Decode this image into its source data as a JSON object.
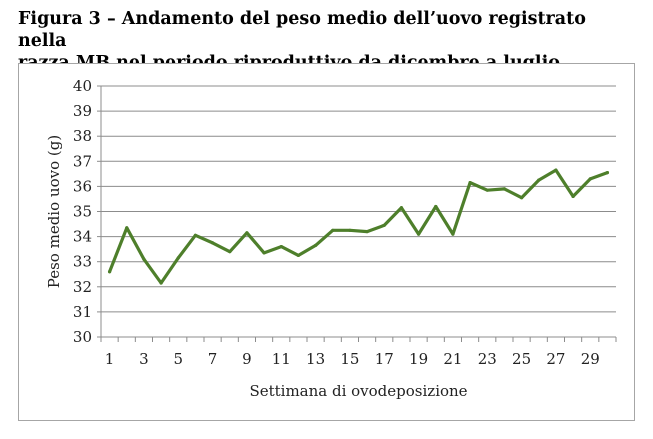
{
  "caption": {
    "line1": "Figura 3 – Andamento del peso medio dell’uovo registrato nella",
    "line2": "razza MB nel periodo riproduttivo da dicembre a luglio."
  },
  "chart_data": {
    "type": "line",
    "title": "",
    "xlabel": "Settimana di ovodeposizione",
    "ylabel": "Peso medio uovo (g)",
    "ylim": [
      30,
      40
    ],
    "yticks": [
      30,
      31,
      32,
      33,
      34,
      35,
      36,
      37,
      38,
      39,
      40
    ],
    "xlim": [
      1,
      30
    ],
    "xticks": [
      1,
      3,
      5,
      7,
      9,
      11,
      13,
      15,
      17,
      19,
      21,
      23,
      25,
      27,
      29
    ],
    "grid": true,
    "legend": "none",
    "line_color": "#4e7f2b",
    "series": [
      {
        "x": [
          1,
          2,
          3,
          4,
          5,
          6,
          7,
          8,
          9,
          10,
          11,
          12,
          13,
          14,
          15,
          16,
          17,
          18,
          19,
          20,
          21,
          22,
          23,
          24,
          25,
          26,
          27,
          28,
          29,
          30
        ],
        "values": [
          32.6,
          34.35,
          33.1,
          32.15,
          33.15,
          34.05,
          33.75,
          33.4,
          34.15,
          33.35,
          33.6,
          33.25,
          33.65,
          34.25,
          34.25,
          34.2,
          34.45,
          35.15,
          34.1,
          35.2,
          34.1,
          36.15,
          35.85,
          35.9,
          35.55,
          36.25,
          36.65,
          35.6,
          36.3,
          36.55
        ]
      }
    ]
  }
}
